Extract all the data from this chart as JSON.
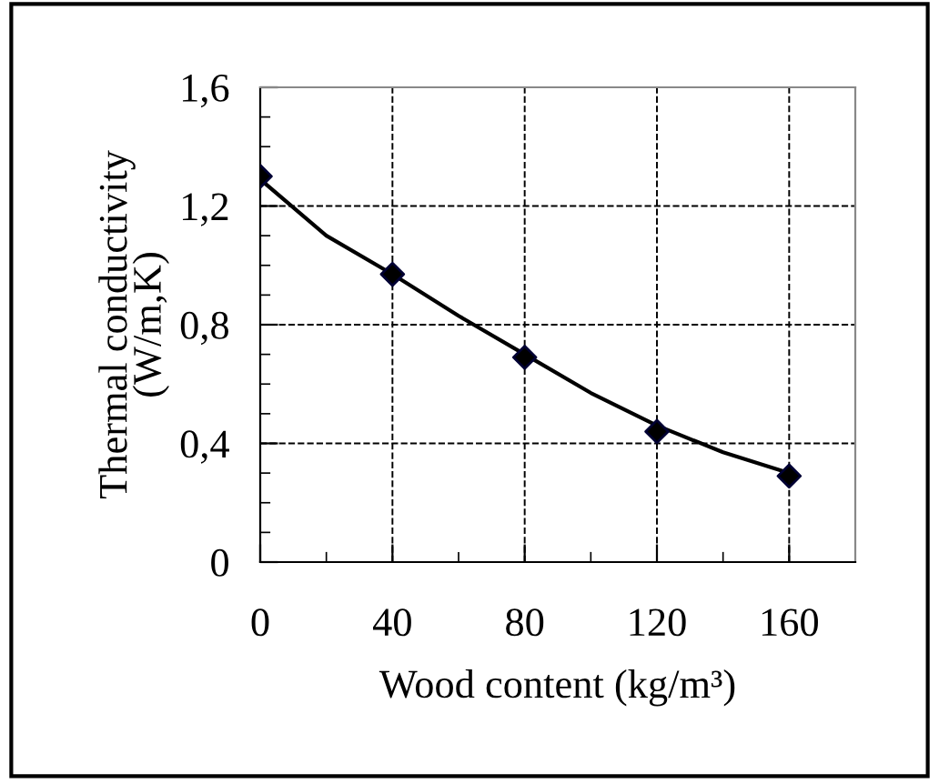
{
  "chart_data": {
    "type": "scatter",
    "xlabel": "Wood content (kg/m³)",
    "ylabel": "Thermal conductivity\n(W/m,K)",
    "series": [
      {
        "type": "line",
        "color": "#000000",
        "marker": "none",
        "x": [
          0,
          20,
          40,
          60,
          80,
          100,
          120,
          140,
          160
        ],
        "values": [
          1.29,
          1.1,
          0.97,
          0.83,
          0.7,
          0.57,
          0.46,
          0.37,
          0.3
        ]
      },
      {
        "color": "#000000",
        "marker": "diamond",
        "x": [
          0,
          40,
          80,
          120,
          160
        ],
        "values": [
          1.3,
          0.97,
          0.69,
          0.44,
          0.29
        ]
      }
    ],
    "xlim": [
      0,
      180
    ],
    "ylim": [
      0,
      1.6
    ],
    "xticks": [
      0,
      40,
      80,
      120,
      160
    ],
    "yticks": [
      0,
      {
        "value": 0.4,
        "label": "0,4"
      },
      {
        "value": 0.8,
        "label": "0,8"
      },
      {
        "value": 1.2,
        "label": "1,2"
      },
      {
        "value": 1.6,
        "label": "1,6"
      }
    ],
    "grid": true,
    "legend": false
  }
}
